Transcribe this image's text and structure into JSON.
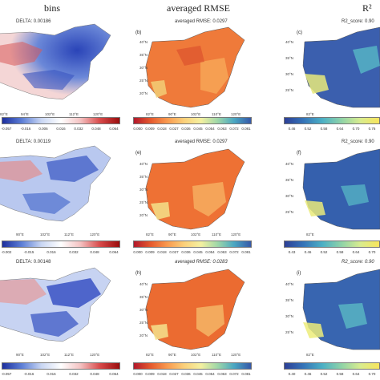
{
  "columns": [
    "bins",
    "averaged RMSE",
    "R²"
  ],
  "rows": [
    {
      "bias": {
        "title": "DELTA: 0.00186",
        "ticks": [
          "-0.057",
          "-0.016",
          "0.006",
          "0.016",
          "0.032",
          "0.048",
          "0.064"
        ]
      },
      "rmse": {
        "label": "(b)",
        "title": "averaged RMSE: 0.0297",
        "ticks": [
          "0.000",
          "0.009",
          "0.018",
          "0.027",
          "0.036",
          "0.045",
          "0.054",
          "0.063",
          "0.072",
          "0.081"
        ]
      },
      "r2": {
        "label": "(c)",
        "title": "R2_score: 0.90",
        "ticks": [
          "0.46",
          "0.52",
          "0.58",
          "0.64",
          "0.70",
          "0.76"
        ]
      },
      "bias_lon": [
        "82°E",
        "94°E",
        "102°E",
        "112°E",
        "120°E"
      ]
    },
    {
      "bias": {
        "title": "DELTA: 0.00119",
        "ticks": [
          "-0.002",
          "-0.015",
          "0.016",
          "0.032",
          "0.048",
          "0.064"
        ]
      },
      "rmse": {
        "label": "(e)",
        "title": "averaged RMSE: 0.0297",
        "ticks": [
          "0.000",
          "0.009",
          "0.018",
          "0.027",
          "0.036",
          "0.045",
          "0.054",
          "0.063",
          "0.072",
          "0.081"
        ]
      },
      "r2": {
        "label": "(f)",
        "title": "R2_score: 0.90",
        "ticks": [
          "0.43",
          "0.46",
          "0.52",
          "0.58",
          "0.64",
          "0.70"
        ]
      },
      "bias_lon": [
        "90°E",
        "102°E",
        "112°E",
        "120°E"
      ]
    },
    {
      "bias": {
        "title": "DELTA: 0.00148",
        "ticks": [
          "-0.057",
          "-0.016",
          "0.016",
          "0.032",
          "0.048",
          "0.064"
        ]
      },
      "rmse": {
        "label": "(h)",
        "title": "averaged RMSE: 0.0283",
        "ticks": [
          "0.000",
          "0.009",
          "0.018",
          "0.027",
          "0.036",
          "0.045",
          "0.054",
          "0.063",
          "0.072",
          "0.081"
        ]
      },
      "r2": {
        "label": "(i)",
        "title": "R2_score: 0.90",
        "ticks": [
          "0.40",
          "0.46",
          "0.52",
          "0.58",
          "0.64",
          "0.70"
        ]
      },
      "bias_lon": [
        "90°E",
        "102°E",
        "112°E",
        "120°E"
      ]
    }
  ],
  "lat_labels": [
    "40°N",
    "35°N",
    "30°N",
    "25°N",
    "20°N",
    "15°N",
    "10°N"
  ],
  "lon_labels": [
    "82°E",
    "90°E",
    "102°E",
    "110°E",
    "120°E"
  ],
  "colors": {
    "bias_cmap": [
      "#1d2f9e",
      "#5d7fd6",
      "#c9d6f3",
      "#ffffff",
      "#f4c2c2",
      "#d84a4a",
      "#9a0d0d"
    ],
    "rmse_cmap": [
      "#b2182b",
      "#e5592e",
      "#f99a4f",
      "#fbd07a",
      "#f4f0a0",
      "#9fd7a8",
      "#4aa7c2",
      "#3658a8"
    ],
    "r2_cmap": [
      "#2d3f96",
      "#3574b8",
      "#4cb0c5",
      "#8fd3a8",
      "#d8ec8f",
      "#f8e55c"
    ]
  }
}
